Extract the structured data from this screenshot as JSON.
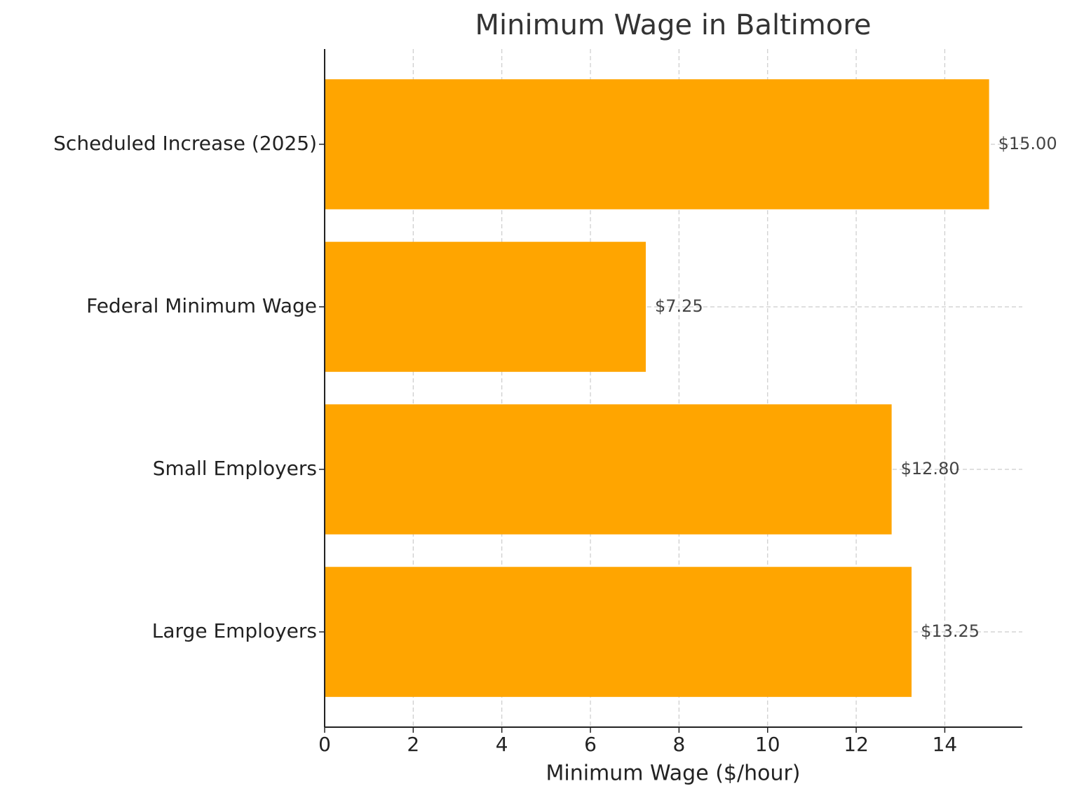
{
  "chart_data": {
    "type": "barh",
    "title": "Minimum Wage in Baltimore",
    "xlabel": "Minimum Wage ($/hour)",
    "categories": [
      "Large Employers",
      "Small Employers",
      "Federal Minimum Wage",
      "Scheduled Increase (2025)"
    ],
    "values": [
      13.25,
      12.8,
      7.25,
      15
    ],
    "value_labels": [
      "$13.25",
      "$12.80",
      "$7.25",
      "$15.00"
    ],
    "color": "#ffa500",
    "xlim": [
      0,
      15.75
    ],
    "xticks": [
      0,
      2,
      4,
      6,
      8,
      10,
      12,
      14
    ],
    "grid": true
  }
}
